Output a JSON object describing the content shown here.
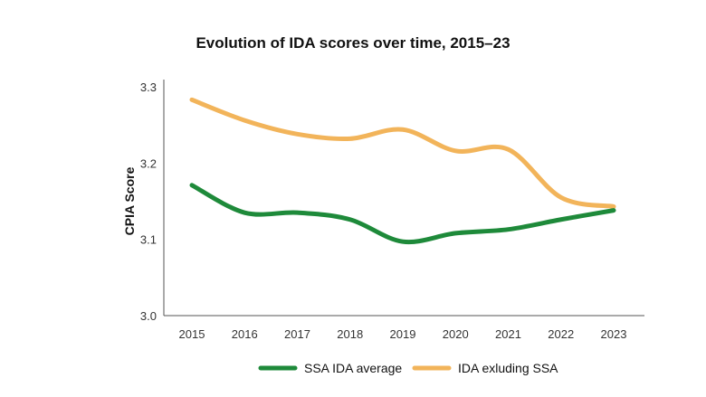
{
  "chart_data": {
    "type": "line",
    "title": "Evolution of IDA scores over time, 2015–23",
    "xlabel": "",
    "ylabel": "CPIA Score",
    "x": [
      "2015",
      "2016",
      "2017",
      "2018",
      "2019",
      "2020",
      "2021",
      "2022",
      "2023"
    ],
    "yticks": [
      "3.0",
      "3.1",
      "3.2",
      "3.3"
    ],
    "ylim": [
      3.0,
      3.3
    ],
    "grid": false,
    "legend": "bottom",
    "series": [
      {
        "name": "SSA IDA average",
        "color": "#1e8a3a",
        "values": [
          3.171,
          3.135,
          3.135,
          3.126,
          3.097,
          3.108,
          3.113,
          3.126,
          3.138
        ]
      },
      {
        "name": "IDA exluding SSA",
        "color": "#f2b45a",
        "values": [
          3.283,
          3.256,
          3.238,
          3.232,
          3.244,
          3.216,
          3.218,
          3.155,
          3.143
        ]
      }
    ]
  }
}
